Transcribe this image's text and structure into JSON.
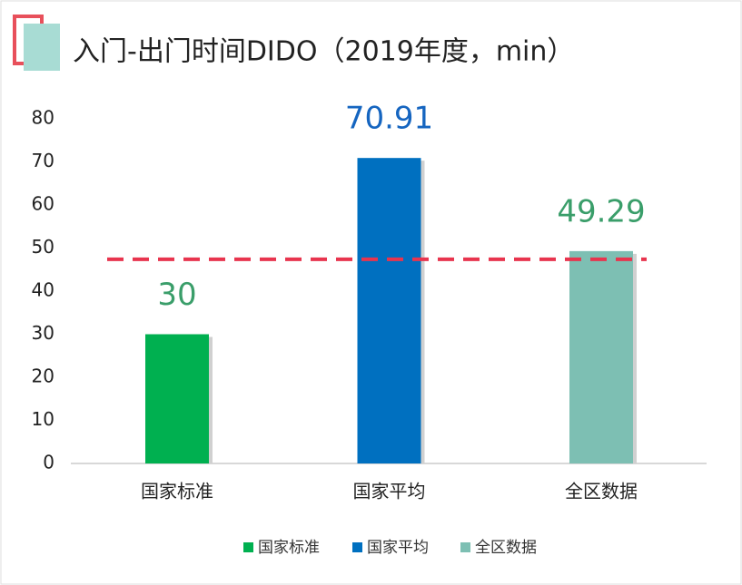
{
  "chart_data": {
    "type": "bar",
    "title": "入门-出门时间DIDO（2019年度，min）",
    "categories": [
      "国家标准",
      "国家平均",
      "全区数据"
    ],
    "values": [
      30,
      70.91,
      49.29
    ],
    "colors": [
      "#00b050",
      "#0070c0",
      "#7dbfb3"
    ],
    "label_colors": [
      "#3a9e6a",
      "#1565c0",
      "#3a9e6a"
    ],
    "ylim": [
      0,
      80
    ],
    "yticks": [
      0,
      10,
      20,
      30,
      40,
      50,
      60,
      70,
      80
    ],
    "reference_line": {
      "value": 47.4,
      "color": "#e8344e"
    },
    "legend": "bottom"
  }
}
